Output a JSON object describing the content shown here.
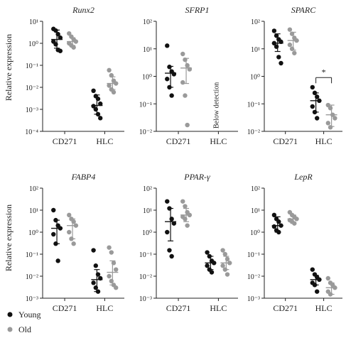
{
  "figure": {
    "ylabel": "Relative expression",
    "colors": {
      "young": "#111111",
      "old": "#9a9a9a",
      "axis": "#222222"
    }
  },
  "legend": [
    {
      "label": "Young",
      "color": "#111111"
    },
    {
      "label": "Old",
      "color": "#9a9a9a"
    }
  ],
  "chart_data": [
    {
      "type": "scatter",
      "title": "Runx2",
      "categories": [
        "CD271",
        "HLC"
      ],
      "yscale": "log",
      "ytick_exponents": [
        1,
        0,
        -1,
        -2,
        -3,
        -4
      ],
      "ylim": [
        0.0001,
        10
      ],
      "annotation": "",
      "series": [
        {
          "name": "Young",
          "groups": [
            {
              "category": "CD271",
              "points": [
                4.5,
                3.8,
                2.6,
                1.8,
                1.2,
                0.9,
                0.5,
                0.45
              ],
              "median": 1.5,
              "err": [
                0.6,
                4.0
              ]
            },
            {
              "category": "HLC",
              "points": [
                0.007,
                0.004,
                0.003,
                0.0018,
                0.0014,
                0.001,
                0.0006,
                0.0004
              ],
              "median": 0.0015,
              "err": [
                0.0006,
                0.0045
              ]
            }
          ]
        },
        {
          "name": "Old",
          "groups": [
            {
              "category": "CD271",
              "points": [
                2.8,
                2.0,
                1.5,
                1.2,
                1.0,
                0.8,
                0.65
              ],
              "median": 1.2,
              "err": [
                0.8,
                1.8
              ]
            },
            {
              "category": "HLC",
              "points": [
                0.06,
                0.035,
                0.02,
                0.015,
                0.012,
                0.008,
                0.006
              ],
              "median": 0.015,
              "err": [
                0.008,
                0.03
              ]
            }
          ]
        }
      ]
    },
    {
      "type": "scatter",
      "title": "SFRP1",
      "categories": [
        "CD271",
        "HLC"
      ],
      "yscale": "log",
      "ytick_exponents": [
        2,
        1,
        0,
        -1,
        -2
      ],
      "ylim": [
        0.01,
        100
      ],
      "annotation": "Below detection",
      "series": [
        {
          "name": "Young",
          "groups": [
            {
              "category": "CD271",
              "points": [
                13,
                2.2,
                1.5,
                1.2,
                0.8,
                0.4,
                0.2
              ],
              "median": 1.3,
              "err": [
                0.4,
                2.3
              ]
            }
          ]
        },
        {
          "name": "Old",
          "groups": [
            {
              "category": "CD271",
              "points": [
                6.5,
                4.0,
                2.5,
                1.8,
                0.6,
                0.2,
                0.017
              ],
              "median": 2.0,
              "err": [
                0.55,
                4.5
              ]
            }
          ]
        }
      ]
    },
    {
      "type": "scatter",
      "title": "SPARC",
      "categories": [
        "CD271",
        "HLC"
      ],
      "yscale": "log",
      "ytick_exponents": [
        2,
        1,
        0,
        -1,
        -2
      ],
      "ylim": [
        0.01,
        100
      ],
      "annotation": "*",
      "series": [
        {
          "name": "Young",
          "groups": [
            {
              "category": "CD271",
              "points": [
                45,
                30,
                22,
                18,
                16,
                12,
                5,
                3
              ],
              "median": 16,
              "err": [
                8,
                35
              ]
            },
            {
              "category": "HLC",
              "points": [
                0.4,
                0.25,
                0.18,
                0.13,
                0.08,
                0.05,
                0.03
              ],
              "median": 0.13,
              "err": [
                0.05,
                0.25
              ]
            }
          ]
        },
        {
          "name": "Old",
          "groups": [
            {
              "category": "CD271",
              "points": [
                50,
                35,
                25,
                20,
                14,
                10,
                7
              ],
              "median": 20,
              "err": [
                9,
                40
              ]
            },
            {
              "category": "HLC",
              "points": [
                0.09,
                0.07,
                0.04,
                0.03,
                0.02,
                0.014
              ],
              "median": 0.04,
              "err": [
                0.015,
                0.09
              ]
            }
          ]
        }
      ]
    },
    {
      "type": "scatter",
      "title": "FABP4",
      "categories": [
        "CD271",
        "HLC"
      ],
      "yscale": "log",
      "ytick_exponents": [
        2,
        1,
        0,
        -1,
        -2,
        -3
      ],
      "ylim": [
        0.001,
        100
      ],
      "annotation": "",
      "series": [
        {
          "name": "Young",
          "groups": [
            {
              "category": "CD271",
              "points": [
                10,
                3.5,
                2.0,
                1.5,
                0.8,
                0.3,
                0.05
              ],
              "median": 1.5,
              "err": [
                0.3,
                3.5
              ]
            },
            {
              "category": "HLC",
              "points": [
                0.15,
                0.03,
                0.012,
                0.008,
                0.005,
                0.003,
                0.002
              ],
              "median": 0.007,
              "err": [
                0.002,
                0.02
              ]
            }
          ]
        },
        {
          "name": "Old",
          "groups": [
            {
              "category": "CD271",
              "points": [
                6,
                4,
                3,
                2,
                1.0,
                0.5,
                0.3
              ],
              "median": 2.0,
              "err": [
                0.5,
                4.0
              ]
            },
            {
              "category": "HLC",
              "points": [
                0.2,
                0.12,
                0.04,
                0.02,
                0.01,
                0.006,
                0.004,
                0.003
              ],
              "median": 0.015,
              "err": [
                0.004,
                0.05
              ]
            }
          ]
        }
      ]
    },
    {
      "type": "scatter",
      "title": "PPAR-γ",
      "categories": [
        "CD271",
        "HLC"
      ],
      "yscale": "log",
      "ytick_exponents": [
        2,
        1,
        0,
        -1,
        -2,
        -3
      ],
      "ylim": [
        0.001,
        100
      ],
      "annotation": "",
      "series": [
        {
          "name": "Young",
          "groups": [
            {
              "category": "CD271",
              "points": [
                25,
                12,
                4,
                2.5,
                1.0,
                0.15,
                0.08
              ],
              "median": 3.0,
              "err": [
                0.4,
                12
              ]
            },
            {
              "category": "HLC",
              "points": [
                0.12,
                0.08,
                0.05,
                0.04,
                0.03,
                0.02,
                0.015
              ],
              "median": 0.04,
              "err": [
                0.02,
                0.08
              ]
            }
          ]
        },
        {
          "name": "Old",
          "groups": [
            {
              "category": "CD271",
              "points": [
                25,
                15,
                8,
                6,
                5,
                4,
                2
              ],
              "median": 6,
              "err": [
                3,
                12
              ]
            },
            {
              "category": "HLC",
              "points": [
                0.15,
                0.1,
                0.06,
                0.04,
                0.03,
                0.02,
                0.012
              ],
              "median": 0.04,
              "err": [
                0.02,
                0.08
              ]
            }
          ]
        }
      ]
    },
    {
      "type": "scatter",
      "title": "LepR",
      "categories": [
        "CD271",
        "HLC"
      ],
      "yscale": "log",
      "ytick_exponents": [
        2,
        1,
        0,
        -1,
        -2,
        -3
      ],
      "ylim": [
        0.001,
        100
      ],
      "annotation": "",
      "series": [
        {
          "name": "Young",
          "groups": [
            {
              "category": "CD271",
              "points": [
                6,
                4,
                3,
                2,
                1.8,
                1.2,
                1.0
              ],
              "median": 2.0,
              "err": [
                1.0,
                5.0
              ]
            },
            {
              "category": "HLC",
              "points": [
                0.02,
                0.012,
                0.009,
                0.007,
                0.005,
                0.004,
                0.002
              ],
              "median": 0.007,
              "err": [
                0.004,
                0.011
              ]
            }
          ]
        },
        {
          "name": "Old",
          "groups": [
            {
              "category": "CD271",
              "points": [
                8,
                6,
                5,
                4,
                3.5,
                3,
                2.5
              ],
              "median": 4.0,
              "err": [
                2.5,
                6.0
              ]
            },
            {
              "category": "HLC",
              "points": [
                0.008,
                0.005,
                0.004,
                0.003,
                0.002,
                0.0015
              ],
              "median": 0.003,
              "err": [
                0.0015,
                0.005
              ]
            }
          ]
        }
      ]
    }
  ]
}
